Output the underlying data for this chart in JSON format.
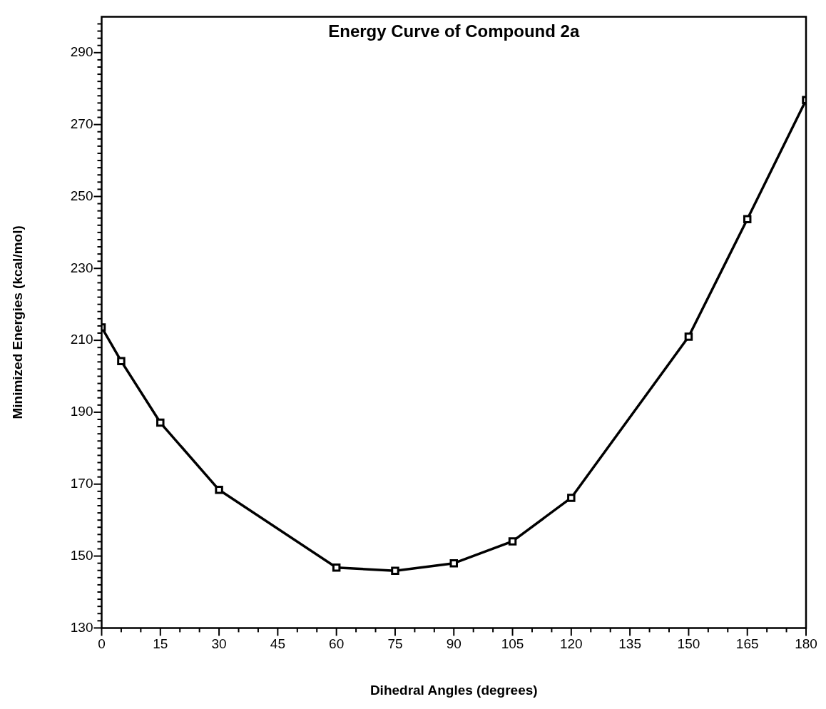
{
  "chart_data": {
    "type": "line",
    "title": "Energy Curve of Compound 2a",
    "xlabel": "Dihedral Angles (degrees)",
    "ylabel": "Minimized Energies (kcal/mol)",
    "x": [
      0,
      5,
      15,
      30,
      60,
      75,
      90,
      105,
      120,
      150,
      165,
      180
    ],
    "series": [
      {
        "color": "#000000",
        "values": [
          213.6,
          204.2,
          187.1,
          168.4,
          146.8,
          145.9,
          148.0,
          154.1,
          166.2,
          211.0,
          243.7,
          276.8
        ]
      }
    ],
    "marker": "square",
    "line_style": "solid",
    "xlim": [
      0,
      180
    ],
    "xticks": [
      0,
      {
        "value": 5,
        "label": null
      },
      {
        "value": 10,
        "label": null
      },
      15,
      {
        "value": 20,
        "label": null
      },
      {
        "value": 25,
        "label": null
      },
      30,
      {
        "value": 35,
        "label": null
      },
      {
        "value": 40,
        "label": null
      },
      45,
      {
        "value": 50,
        "label": null
      },
      {
        "value": 55,
        "label": null
      },
      60,
      {
        "value": 65,
        "label": null
      },
      {
        "value": 70,
        "label": null
      },
      75,
      {
        "value": 80,
        "label": null
      },
      {
        "value": 85,
        "label": null
      },
      90,
      {
        "value": 95,
        "label": null
      },
      {
        "value": 100,
        "label": null
      },
      105,
      {
        "value": 110,
        "label": null
      },
      {
        "value": 115,
        "label": null
      },
      120,
      {
        "value": 125,
        "label": null
      },
      {
        "value": 130,
        "label": null
      },
      135,
      {
        "value": 140,
        "label": null
      },
      {
        "value": 145,
        "label": null
      },
      150,
      {
        "value": 155,
        "label": null
      },
      {
        "value": 160,
        "label": null
      },
      165,
      {
        "value": 170,
        "label": null
      },
      {
        "value": 175,
        "label": null
      },
      180
    ],
    "ylim": [
      130,
      300
    ],
    "yticks": [
      130,
      {
        "value": 132,
        "label": null
      },
      {
        "value": 134,
        "label": null
      },
      {
        "value": 136,
        "label": null
      },
      {
        "value": 138,
        "label": null
      },
      {
        "value": 140,
        "label": null
      },
      {
        "value": 142,
        "label": null
      },
      {
        "value": 144,
        "label": null
      },
      {
        "value": 146,
        "label": null
      },
      {
        "value": 148,
        "label": null
      },
      150,
      {
        "value": 152,
        "label": null
      },
      {
        "value": 154,
        "label": null
      },
      {
        "value": 156,
        "label": null
      },
      {
        "value": 158,
        "label": null
      },
      {
        "value": 160,
        "label": null
      },
      {
        "value": 162,
        "label": null
      },
      {
        "value": 164,
        "label": null
      },
      {
        "value": 166,
        "label": null
      },
      {
        "value": 168,
        "label": null
      },
      170,
      {
        "value": 172,
        "label": null
      },
      {
        "value": 174,
        "label": null
      },
      {
        "value": 176,
        "label": null
      },
      {
        "value": 178,
        "label": null
      },
      {
        "value": 180,
        "label": null
      },
      {
        "value": 182,
        "label": null
      },
      {
        "value": 184,
        "label": null
      },
      {
        "value": 186,
        "label": null
      },
      {
        "value": 188,
        "label": null
      },
      190,
      {
        "value": 192,
        "label": null
      },
      {
        "value": 194,
        "label": null
      },
      {
        "value": 196,
        "label": null
      },
      {
        "value": 198,
        "label": null
      },
      {
        "value": 200,
        "label": null
      },
      {
        "value": 202,
        "label": null
      },
      {
        "value": 204,
        "label": null
      },
      {
        "value": 206,
        "label": null
      },
      {
        "value": 208,
        "label": null
      },
      210,
      {
        "value": 212,
        "label": null
      },
      {
        "value": 214,
        "label": null
      },
      {
        "value": 216,
        "label": null
      },
      {
        "value": 218,
        "label": null
      },
      {
        "value": 220,
        "label": null
      },
      {
        "value": 222,
        "label": null
      },
      {
        "value": 224,
        "label": null
      },
      {
        "value": 226,
        "label": null
      },
      {
        "value": 228,
        "label": null
      },
      230,
      {
        "value": 232,
        "label": null
      },
      {
        "value": 234,
        "label": null
      },
      {
        "value": 236,
        "label": null
      },
      {
        "value": 238,
        "label": null
      },
      {
        "value": 240,
        "label": null
      },
      {
        "value": 242,
        "label": null
      },
      {
        "value": 244,
        "label": null
      },
      {
        "value": 246,
        "label": null
      },
      {
        "value": 248,
        "label": null
      },
      250,
      {
        "value": 252,
        "label": null
      },
      {
        "value": 254,
        "label": null
      },
      {
        "value": 256,
        "label": null
      },
      {
        "value": 258,
        "label": null
      },
      {
        "value": 260,
        "label": null
      },
      {
        "value": 262,
        "label": null
      },
      {
        "value": 264,
        "label": null
      },
      {
        "value": 266,
        "label": null
      },
      {
        "value": 268,
        "label": null
      },
      270,
      {
        "value": 272,
        "label": null
      },
      {
        "value": 274,
        "label": null
      },
      {
        "value": 276,
        "label": null
      },
      {
        "value": 278,
        "label": null
      },
      {
        "value": 280,
        "label": null
      },
      {
        "value": 282,
        "label": null
      },
      {
        "value": 284,
        "label": null
      },
      {
        "value": 286,
        "label": null
      },
      {
        "value": 288,
        "label": null
      },
      290,
      {
        "value": 292,
        "label": null
      },
      {
        "value": 294,
        "label": null
      },
      {
        "value": 296,
        "label": null
      },
      {
        "value": 298,
        "label": null
      }
    ]
  }
}
